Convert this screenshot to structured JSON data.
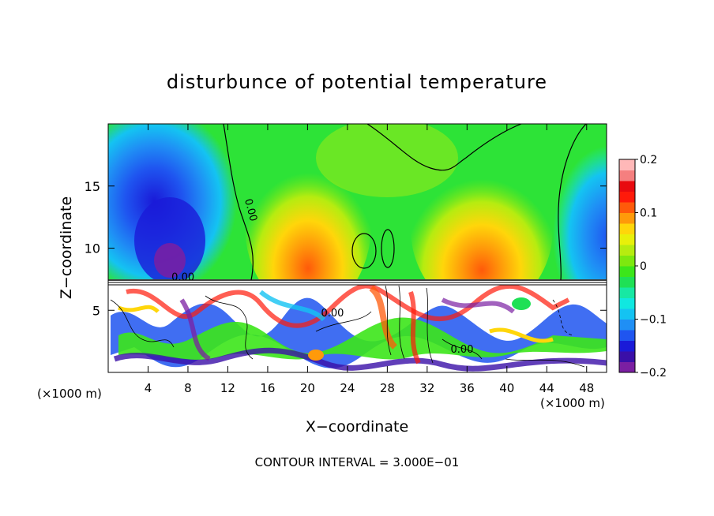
{
  "chart_data": {
    "type": "heatmap",
    "title": "disturbunce of potential temperature",
    "xlabel": "X−coordinate",
    "ylabel": "Z−coordinate",
    "x_unit_left": "(×1000 m)",
    "x_unit_right": "(×1000 m)",
    "xlim": [
      0,
      50
    ],
    "ylim": [
      0,
      20
    ],
    "x_ticks": [
      4,
      8,
      12,
      16,
      20,
      24,
      28,
      32,
      36,
      40,
      44,
      48
    ],
    "y_ticks": [
      5,
      10,
      15
    ],
    "contour_labels": [
      {
        "text": "0.00",
        "x": 14,
        "y": 13
      },
      {
        "text": "0.00",
        "x": 7.5,
        "y": 7.4
      },
      {
        "text": "0.00",
        "x": 22.5,
        "y": 4.5
      },
      {
        "text": "0.00",
        "x": 35.5,
        "y": 1.6
      }
    ],
    "colorbar": {
      "min": -0.2,
      "max": 0.2,
      "tick_values": [
        0.2,
        0.1,
        0,
        -0.1,
        -0.2
      ],
      "tick_labels": [
        "0.2",
        "0.1",
        "0",
        "−0.1",
        "−0.2"
      ],
      "colors": [
        "#7b1fa2",
        "#3a0fa8",
        "#1a1ad8",
        "#1f55f0",
        "#1f8ff5",
        "#14c3f2",
        "#10e8e0",
        "#17e8a3",
        "#1fe055",
        "#3ce61a",
        "#7de80f",
        "#b6ec10",
        "#e8f00a",
        "#ffd60a",
        "#ff9a0a",
        "#ff5a0a",
        "#ff1a0a",
        "#e80a10",
        "#f57f7f",
        "#ffb8b8"
      ]
    },
    "contour_interval_text": "CONTOUR INTERVAL = 3.000E−01",
    "grid": false
  }
}
